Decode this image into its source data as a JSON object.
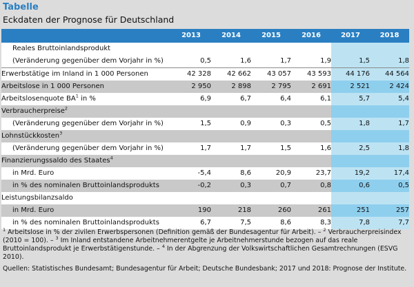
{
  "header": {
    "title": "Tabelle",
    "subtitle": "Eckdaten der Prognose für Deutschland"
  },
  "years": [
    "2013",
    "2014",
    "2015",
    "2016",
    "2017",
    "2018"
  ],
  "forecast_from_index": 4,
  "rows": [
    {
      "label": "Reales Bruttoinlandsprodukt",
      "indent": true,
      "shade": "w",
      "values": [
        "",
        "",
        "",
        "",
        "",
        ""
      ]
    },
    {
      "label": "(Veränderung gegenüber dem Vorjahr in %)",
      "indent": true,
      "shade": "w",
      "values": [
        "0,5",
        "1,6",
        "1,7",
        "1,9",
        "1,5",
        "1,8"
      ]
    },
    {
      "label": "Erwerbstätige im Inland in 1 000 Personen",
      "indent": false,
      "shade": "w",
      "sep": true,
      "values": [
        "42 328",
        "42 662",
        "43 057",
        "43 593",
        "44 176",
        "44 564"
      ]
    },
    {
      "label": "Arbeitslose in 1 000 Personen",
      "indent": false,
      "shade": "g",
      "values": [
        "2 950",
        "2 898",
        "2 795",
        "2 691",
        "2 521",
        "2 424"
      ]
    },
    {
      "label": "Arbeitslosenquote BA",
      "sup": "1",
      "label_after": " in %",
      "indent": false,
      "shade": "w",
      "values": [
        "6,9",
        "6,7",
        "6,4",
        "6,1",
        "5,7",
        "5,4"
      ]
    },
    {
      "label": "Verbraucherpreise",
      "sup": "2",
      "indent": false,
      "shade": "g",
      "values": [
        "",
        "",
        "",
        "",
        "",
        ""
      ]
    },
    {
      "label": "(Veränderung gegenüber dem Vorjahr in %)",
      "indent": true,
      "shade": "w",
      "values": [
        "1,5",
        "0,9",
        "0,3",
        "0,5",
        "1,8",
        "1,7"
      ]
    },
    {
      "label": "Lohnstückkosten",
      "sup": "3",
      "indent": false,
      "shade": "g",
      "values": [
        "",
        "",
        "",
        "",
        "",
        ""
      ]
    },
    {
      "label": "(Veränderung gegenüber dem Vorjahr in %)",
      "indent": true,
      "shade": "w",
      "values": [
        "1,7",
        "1,7",
        "1,5",
        "1,6",
        "2,5",
        "1,8"
      ]
    },
    {
      "label": "Finanzierungssaldo des Staates",
      "sup": "4",
      "indent": false,
      "shade": "g",
      "values": [
        "",
        "",
        "",
        "",
        "",
        ""
      ]
    },
    {
      "label": "in Mrd. Euro",
      "indent": true,
      "shade": "w",
      "values": [
        "-5,4",
        "8,6",
        "20,9",
        "23,7",
        "19,2",
        "17,4"
      ]
    },
    {
      "label": "in % des nominalen Bruttoinlandsprodukts",
      "indent": true,
      "shade": "g",
      "values": [
        "-0,2",
        "0,3",
        "0,7",
        "0,8",
        "0,6",
        "0,5"
      ]
    },
    {
      "label": "Leistungsbilanzsaldo",
      "indent": false,
      "shade": "w",
      "values": [
        "",
        "",
        "",
        "",
        "",
        ""
      ]
    },
    {
      "label": "in Mrd. Euro",
      "indent": true,
      "shade": "g",
      "values": [
        "190",
        "218",
        "260",
        "261",
        "251",
        "257"
      ]
    },
    {
      "label": "in % des nominalen Bruttoinlandsprodukts",
      "indent": true,
      "shade": "w",
      "values": [
        "6,7",
        "7,5",
        "8,6",
        "8,3",
        "7,8",
        "7,7"
      ]
    }
  ],
  "footnotes": {
    "line1_pre": "",
    "sup1": "1",
    "part1": " Arbeitslose in % der zivilen Erwerbspersonen (Definition gemäß der Bundesagentur für Arbeit). – ",
    "sup2": "2",
    "part2": " Verbraucherpreisindex (2010 = 100). – ",
    "sup3": "3",
    "part3": " Im Inland entstandene Arbeitnehmerentgelte je Arbeitnehmerstunde bezogen auf das reale Bruttoinlandsprodukt je Erwerbstätigenstunde. – ",
    "sup4": "4",
    "part4": " In der Abgrenzung der Volkswirtschaftlichen Gesamtrechnungen (ESVG 2010)."
  },
  "sources": "Quellen: Statistisches Bundesamt; Bundesagentur für Arbeit; Deutsche Bundesbank; 2017 und 2018: Prognose der Institute."
}
